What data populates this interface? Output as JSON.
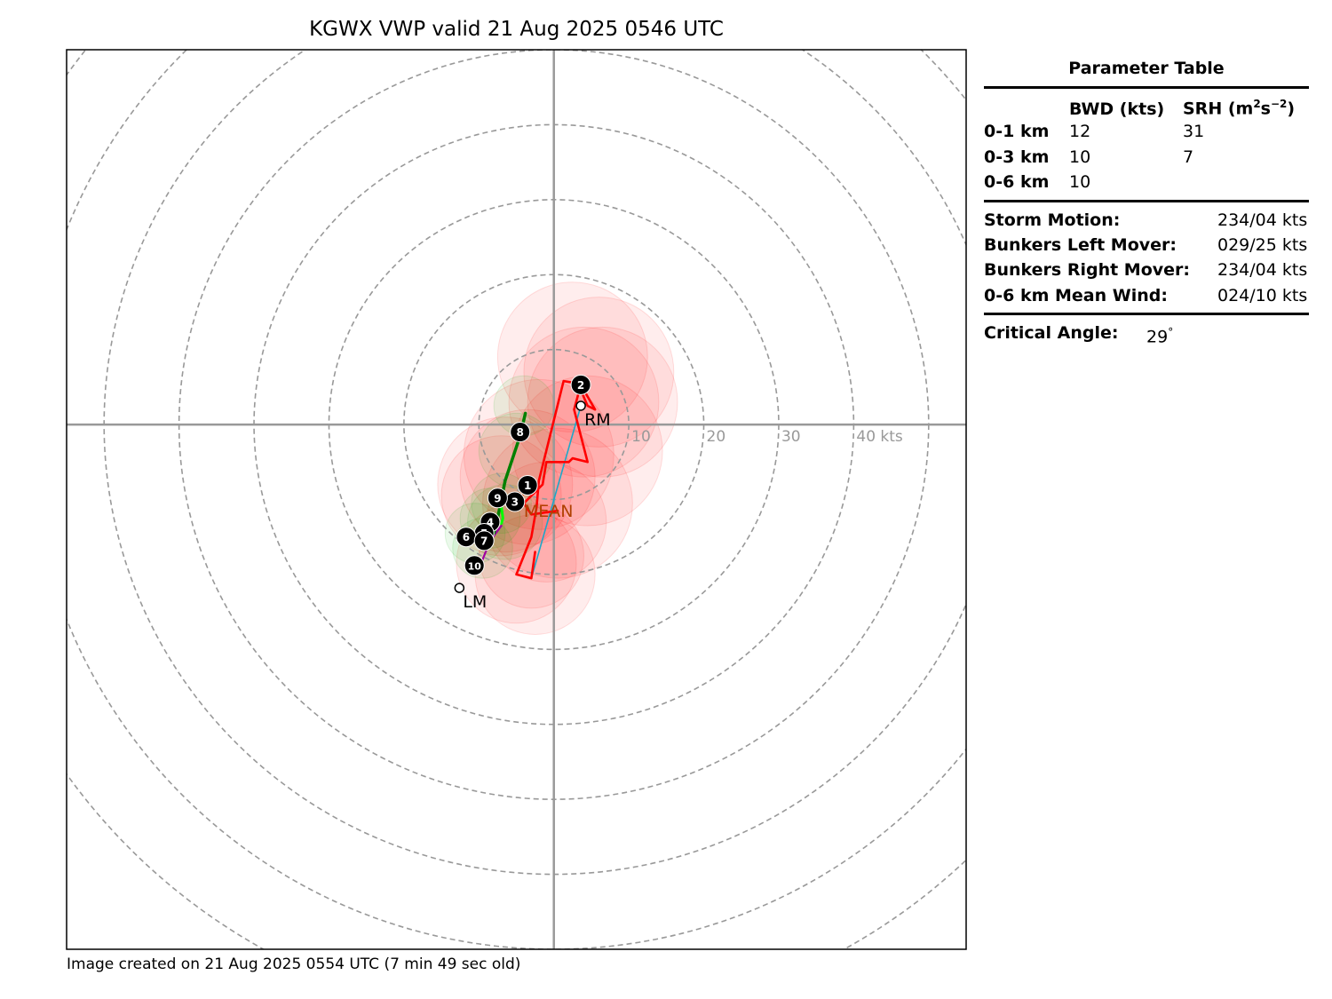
{
  "title": "KGWX VWP valid 21 Aug 2025 0546 UTC",
  "footer": "Image created on 21 Aug 2025 0554 UTC (7 min 49 sec old)",
  "parameter_table": {
    "title": "Parameter Table",
    "col_bwd": "BWD (kts)",
    "col_srh_base": "SRH (m",
    "col_srh_sup1": "2",
    "col_srh_mid": "s",
    "col_srh_sup2": "−2",
    "col_srh_end": ")",
    "rows": [
      {
        "layer": "0-1 km",
        "bwd": "12",
        "srh": "31"
      },
      {
        "layer": "0-3 km",
        "bwd": "10",
        "srh": "7"
      },
      {
        "layer": "0-6 km",
        "bwd": "10",
        "srh": ""
      }
    ],
    "motions": [
      {
        "label": "Storm Motion:",
        "value": "234/04 kts"
      },
      {
        "label": "Bunkers Left Mover:",
        "value": "029/25 kts"
      },
      {
        "label": "Bunkers Right Mover:",
        "value": "234/04 kts"
      },
      {
        "label": "0-6 km Mean Wind:",
        "value": "024/10 kts"
      }
    ],
    "critical_angle_label": "Critical Angle:",
    "critical_angle_value": "29",
    "critical_angle_unit": "°"
  },
  "chart_data": {
    "type": "scatter",
    "subtype": "hodograph",
    "xlim": [
      -65,
      55
    ],
    "ylim": [
      -70,
      50
    ],
    "ring_values": [
      10,
      20,
      30,
      40,
      50,
      60,
      70,
      80
    ],
    "ring_labels": [
      "10",
      "20",
      "30",
      "40 kts"
    ],
    "grid": true,
    "colors": {
      "hodograph_line": "#ff0000",
      "uncertainty_red": "#ff0000",
      "uncertainty_green": "#00b000",
      "wind_green": "#008000",
      "wind_lime": "#00ff00",
      "wind_magenta": "#a000a0",
      "shear_vector": "#1ea7c8",
      "mean_label": "#b04000",
      "rings": "#999999",
      "axes": "#999999"
    },
    "hodograph_red": [
      [
        0.5,
        -11.5
      ],
      [
        -3.0,
        -12.0
      ],
      [
        -4.0,
        -10.5
      ],
      [
        -1.5,
        -8.0
      ],
      [
        -1.0,
        -5.0
      ],
      [
        2.0,
        -5.0
      ],
      [
        2.5,
        -4.5
      ],
      [
        4.5,
        -5.0
      ],
      [
        2.7,
        2.0
      ],
      [
        3.6,
        5.3
      ],
      [
        5.5,
        2.0
      ],
      [
        4.5,
        2.5
      ],
      [
        3.2,
        5.5
      ],
      [
        1.3,
        5.8
      ],
      [
        -2.0,
        -7.5
      ],
      [
        -2.3,
        -11.0
      ],
      [
        -3.0,
        -15.0
      ],
      [
        -5.0,
        -20.0
      ],
      [
        -3.0,
        -20.5
      ],
      [
        -2.5,
        -17.0
      ]
    ],
    "hodograph_green": [
      [
        -3.8,
        1.5
      ],
      [
        -4.5,
        -1.5
      ],
      [
        -5.5,
        -4.5
      ],
      [
        -6.5,
        -7.5
      ],
      [
        -7.0,
        -10.0
      ],
      [
        -7.5,
        -12.5
      ],
      [
        -8.0,
        -14.5
      ]
    ],
    "hodograph_lime": [
      [
        -7.5,
        -9.5
      ],
      [
        -7.0,
        -11.0
      ],
      [
        -6.8,
        -12.5
      ],
      [
        -7.0,
        -13.2
      ]
    ],
    "hodograph_magenta": [
      [
        -7.0,
        -13.5
      ],
      [
        -8.5,
        -15.5
      ],
      [
        -9.5,
        -18.0
      ],
      [
        -10.0,
        -19.5
      ]
    ],
    "shear_vector": [
      [
        3.6,
        2.5
      ],
      [
        -3.0,
        -20.5
      ]
    ],
    "points": [
      {
        "label": "1",
        "u": -3.5,
        "v": -8.1
      },
      {
        "label": "2",
        "u": 3.6,
        "v": 5.3
      },
      {
        "label": "3",
        "u": -5.2,
        "v": -10.3
      },
      {
        "label": "4",
        "u": -8.5,
        "v": -13.0
      },
      {
        "label": "5",
        "u": -9.3,
        "v": -14.5
      },
      {
        "label": "6",
        "u": -11.7,
        "v": -15.0
      },
      {
        "label": "7",
        "u": -9.3,
        "v": -15.5
      },
      {
        "label": "8",
        "u": -4.5,
        "v": -1.0
      },
      {
        "label": "9",
        "u": -7.5,
        "v": -9.8
      },
      {
        "label": "10",
        "u": -10.6,
        "v": -18.8
      }
    ],
    "markers": [
      {
        "label": "RM",
        "u": 3.6,
        "v": 2.5
      },
      {
        "label": "LM",
        "u": -12.6,
        "v": -21.8
      },
      {
        "label": "MEAN",
        "u": -4.6,
        "v": -9.6
      }
    ],
    "uncertainty_red": [
      [
        2.5,
        9.0,
        10
      ],
      [
        6.0,
        7.0,
        10
      ],
      [
        4.0,
        3.0,
        10
      ],
      [
        6.5,
        3.0,
        10
      ],
      [
        4.5,
        -3.5,
        10
      ],
      [
        -2.0,
        -4.0,
        10
      ],
      [
        -3.5,
        -7.0,
        9
      ],
      [
        0.5,
        -10.5,
        10
      ],
      [
        -1.0,
        -13.0,
        8
      ],
      [
        -2.5,
        -20.0,
        8
      ],
      [
        -5.0,
        -18.5,
        8
      ],
      [
        -7.0,
        -9.5,
        8
      ],
      [
        -6.5,
        -8.0,
        9
      ],
      [
        -3.0,
        -17.5,
        7
      ]
    ],
    "uncertainty_green": [
      [
        -4.0,
        2.5,
        4
      ],
      [
        -5.0,
        -3.5,
        5
      ],
      [
        -7.0,
        -10.5,
        4
      ],
      [
        -8.5,
        -12.5,
        4
      ],
      [
        -10.5,
        -14.5,
        4
      ],
      [
        -9.5,
        -16.5,
        4
      ],
      [
        -6.5,
        -13.0,
        5
      ]
    ]
  }
}
